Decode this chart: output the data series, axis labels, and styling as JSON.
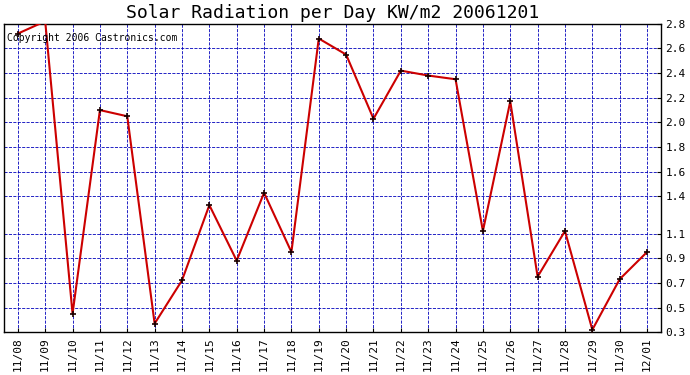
{
  "title": "Solar Radiation per Day KW/m2 20061201",
  "copyright_text": "Copyright 2006 Castronics.com",
  "x_labels": [
    "11/08",
    "11/09",
    "11/10",
    "11/11",
    "11/12",
    "11/13",
    "11/14",
    "11/15",
    "11/16",
    "11/17",
    "11/18",
    "11/19",
    "11/20",
    "11/21",
    "11/22",
    "11/23",
    "11/24",
    "11/25",
    "11/26",
    "11/27",
    "11/28",
    "11/29",
    "11/30",
    "12/01"
  ],
  "y_values": [
    2.72,
    2.82,
    0.45,
    2.1,
    2.05,
    0.37,
    0.72,
    1.33,
    0.88,
    1.43,
    0.95,
    2.68,
    2.55,
    2.03,
    2.42,
    2.38,
    2.35,
    1.12,
    2.17,
    0.75,
    1.12,
    0.32,
    0.73,
    0.95
  ],
  "ylim_min": 0.3,
  "ylim_max": 2.8,
  "yticks": [
    2.8,
    2.6,
    2.4,
    2.2,
    2.0,
    1.8,
    1.6,
    1.4,
    1.1,
    0.9,
    0.7,
    0.5,
    0.3
  ],
  "ytick_labels": [
    "2.8",
    "2.6",
    "2.4",
    "2.2",
    "2.0",
    "1.8",
    "1.6",
    "1.4",
    "1.1",
    "0.9",
    "0.7",
    "0.5",
    "0.3"
  ],
  "line_color": "#cc0000",
  "marker_color": "#1a0000",
  "bg_color": "#ffffff",
  "plot_bg_color": "#ffffff",
  "grid_color": "#0000bb",
  "title_fontsize": 13,
  "axis_label_fontsize": 8,
  "copyright_fontsize": 7
}
